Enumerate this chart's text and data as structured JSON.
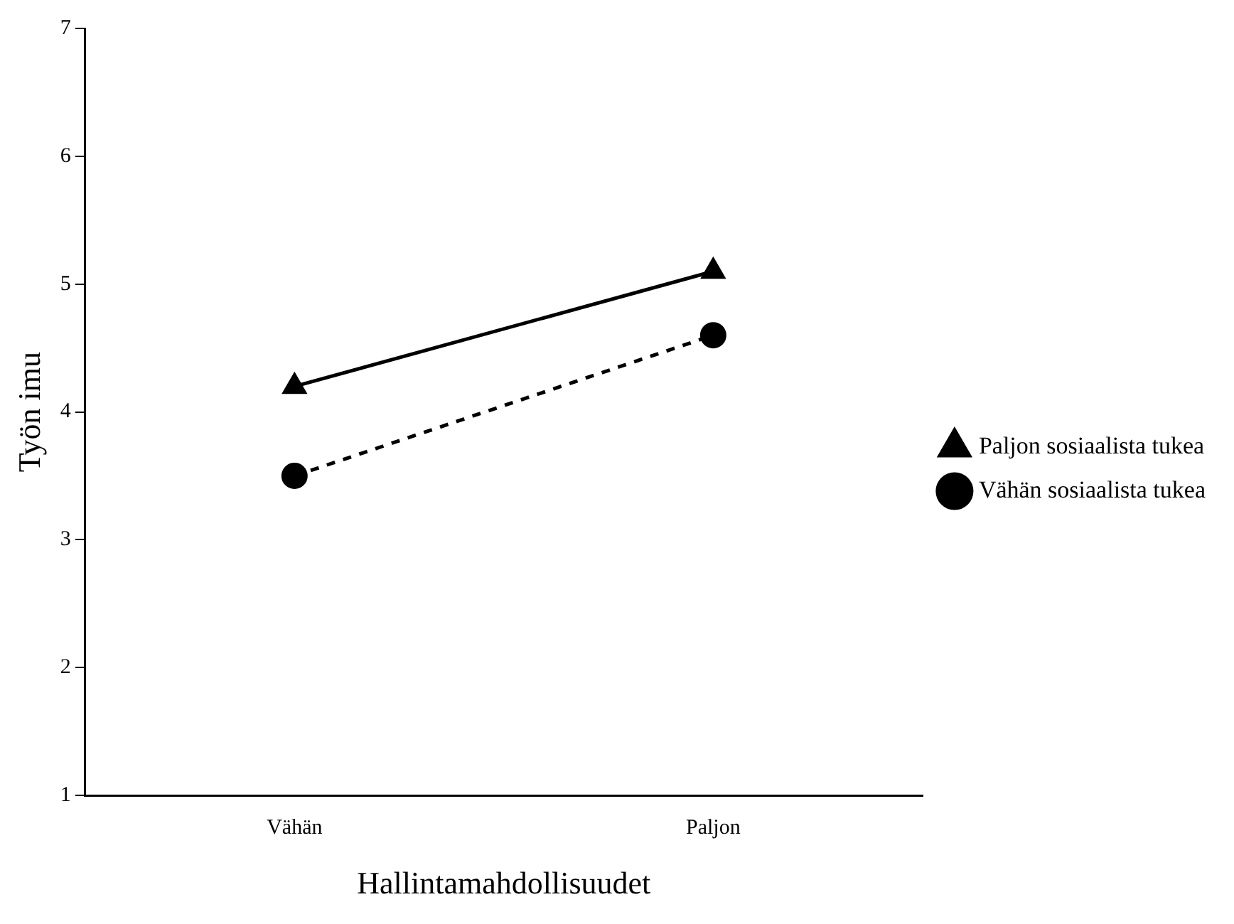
{
  "chart_data": {
    "type": "line",
    "xlabel": "Hallintamahdollisuudet",
    "ylabel": "Työn imu",
    "categories": [
      "Vähän",
      "Paljon"
    ],
    "series": [
      {
        "name": "Paljon sosiaalista tukea",
        "color": "#000000",
        "values": [
          4.2,
          5.1
        ],
        "marker": "triangle",
        "line_style": "solid"
      },
      {
        "name": "Vähän sosiaalista tukea",
        "color": "#000000",
        "values": [
          3.5,
          4.6
        ],
        "marker": "circle",
        "line_style": "dashed"
      }
    ],
    "ylim": [
      1,
      7
    ],
    "yticks": [
      1,
      2,
      3,
      4,
      5,
      6,
      7
    ],
    "grid": false,
    "legend": "right"
  }
}
